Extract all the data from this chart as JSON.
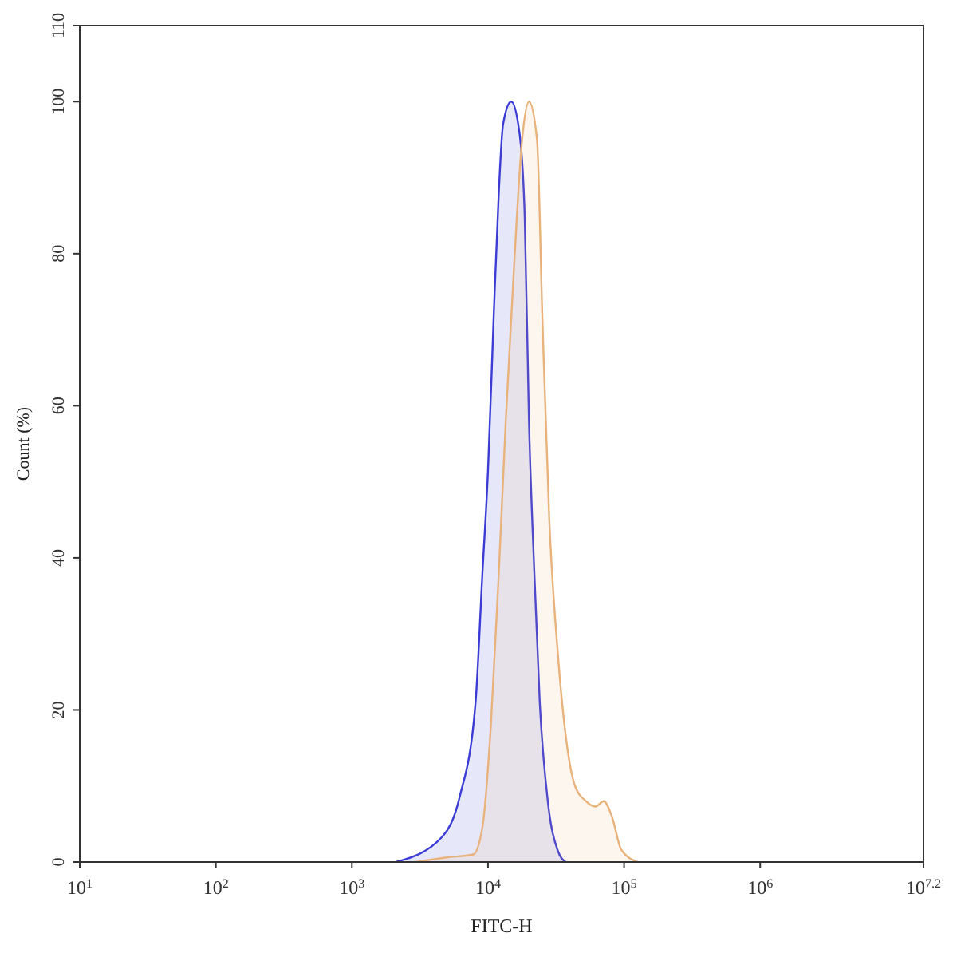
{
  "chart_data": {
    "type": "area",
    "xlabel": "FITC-H",
    "ylabel": "Count  (%)",
    "log": "x",
    "xlim": [
      10,
      15848932
    ],
    "xticks": [
      {
        "value": 10,
        "label": "10$^{1}$"
      },
      {
        "value": 100,
        "label": "10$^{2}$"
      },
      {
        "value": 1000,
        "label": "10$^{3}$"
      },
      {
        "value": 10000,
        "label": "10$^{4}$"
      },
      {
        "value": 100000,
        "label": "10$^{5}$"
      },
      {
        "value": 1000000,
        "label": "10$^{6}$"
      },
      {
        "value": 15848932,
        "label": "10$^{7.2}$"
      }
    ],
    "ylim": [
      0,
      110
    ],
    "yticks": [
      0,
      20,
      40,
      60,
      80,
      100,
      110
    ],
    "series": [
      {
        "color": "#3b3bd6",
        "x": [
          2100,
          4600,
          6200,
          8100,
          9100,
          10000,
          11000,
          12000,
          12900,
          14800,
          17000,
          18600,
          20000,
          21900,
          24000,
          27500,
          32400,
          37200
        ],
        "values": [
          0,
          3.3,
          8.6,
          21,
          38,
          51.5,
          71.5,
          88,
          97,
          100,
          96,
          85,
          58,
          38,
          21,
          8,
          1.6,
          0
        ]
      },
      {
        "color": "#e8b27a",
        "x": [
          2950,
          5000,
          7800,
          9100,
          10500,
          12000,
          13500,
          15500,
          17800,
          20000,
          22900,
          25100,
          28200,
          32400,
          37200,
          43600,
          52500,
          61700,
          70800,
          81300,
          95500,
          126000
        ],
        "values": [
          0,
          0.6,
          1,
          4.6,
          18,
          38,
          58,
          78,
          95,
          100,
          95,
          71.5,
          45,
          28,
          16.7,
          10,
          8,
          7.3,
          8,
          6,
          1.6,
          0
        ]
      }
    ]
  }
}
